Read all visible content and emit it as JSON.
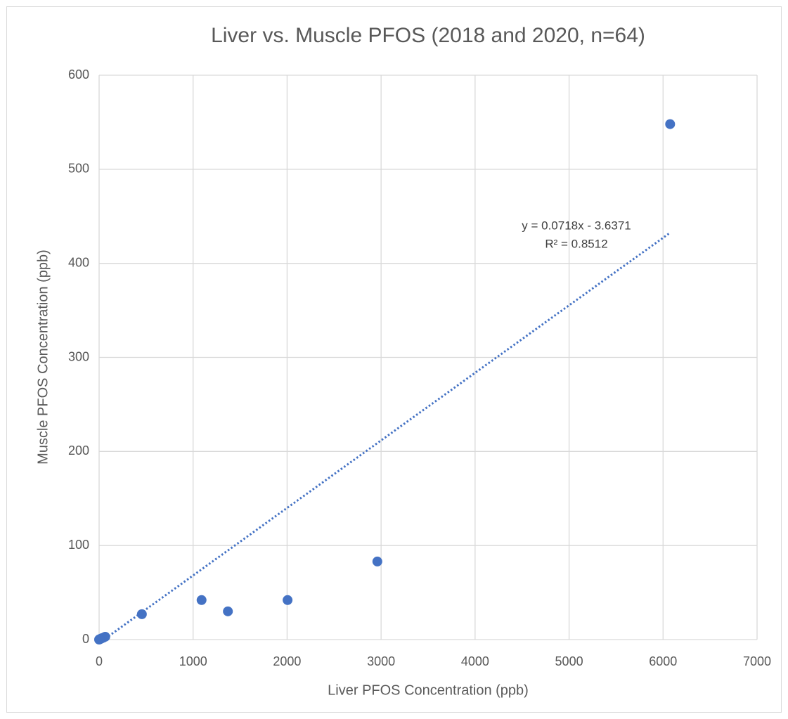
{
  "chart_data": {
    "type": "scatter",
    "title": "Liver vs. Muscle PFOS (2018 and 2020, n=64)",
    "x_label": "Liver PFOS Concentration (ppb)",
    "y_label": "Muscle PFOS Concentration (ppb)",
    "color": "#4472c4",
    "grid": true,
    "xlim": [
      0,
      7000
    ],
    "ylim": [
      0,
      600
    ],
    "xticks": [
      0,
      1000,
      2000,
      3000,
      4000,
      5000,
      6000,
      7000
    ],
    "yticks": [
      0,
      100,
      200,
      300,
      400,
      500,
      600
    ],
    "x": [
      6075,
      2960,
      2005,
      1370,
      1090,
      455,
      65,
      45,
      30,
      20,
      12,
      6,
      3,
      0
    ],
    "values": [
      548,
      83,
      42,
      30,
      42,
      27,
      3,
      2,
      1.5,
      1,
      0.6,
      0.4,
      0.2,
      0
    ],
    "trendline": {
      "equation": "y = 0.0718x - 3.6371",
      "r2": "R² = 0.8512",
      "slope": 0.0718,
      "intercept": -3.6371,
      "x": [
        0,
        6075
      ]
    }
  }
}
